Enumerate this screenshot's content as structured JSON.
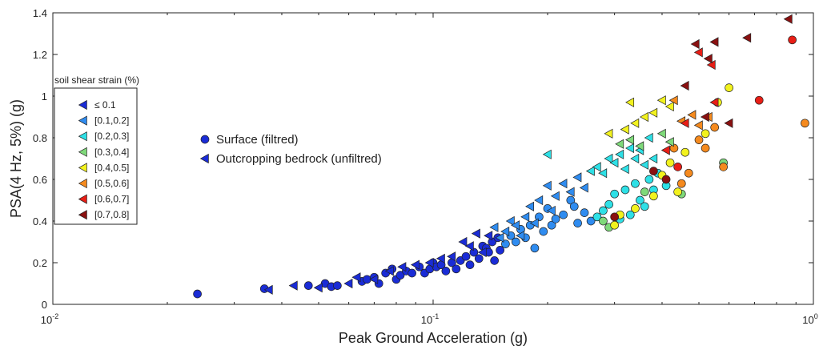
{
  "chart_data": {
    "type": "scatter",
    "xlabel": "Peak Ground Acceleration (g)",
    "ylabel": "PSA(4 Hz, 5%) (g)",
    "x_scale": "log",
    "xlim": [
      0.01,
      1
    ],
    "ylim": [
      0,
      1.4
    ],
    "x_ticks": [
      {
        "value": 0.01,
        "base": "10",
        "exp": "-2"
      },
      {
        "value": 0.1,
        "base": "10",
        "exp": "-1"
      },
      {
        "value": 1,
        "base": "10",
        "exp": "0"
      }
    ],
    "y_ticks": [
      {
        "value": 0,
        "label": "0"
      },
      {
        "value": 0.2,
        "label": "0.2"
      },
      {
        "value": 0.4,
        "label": "0.4"
      },
      {
        "value": 0.6,
        "label": "0.6"
      },
      {
        "value": 0.8,
        "label": "0.8"
      },
      {
        "value": 1.0,
        "label": "1"
      },
      {
        "value": 1.2,
        "label": "1.2"
      },
      {
        "value": 1.4,
        "label": "1.4"
      }
    ],
    "grid": false,
    "strain_legend": {
      "title": "soil shear strain (%)",
      "placement": "left",
      "classes": [
        {
          "label": "≤ 0.1",
          "color": "#1a2cd6"
        },
        {
          "label": "[0.1,0.2]",
          "color": "#2f8cf0"
        },
        {
          "label": "[0.2,0.3]",
          "color": "#2ee0e6"
        },
        {
          "label": "[0.3,0.4]",
          "color": "#7fd97a"
        },
        {
          "label": "[0.4,0.5]",
          "color": "#f2f21e"
        },
        {
          "label": "[0.5,0.6]",
          "color": "#f58a1e"
        },
        {
          "label": "[0.6,0.7]",
          "color": "#e81e16"
        },
        {
          "label": "[0.7,0.8]",
          "color": "#8a1010"
        }
      ]
    },
    "marker_legend": [
      {
        "label": "Surface (filtred)",
        "marker": "circle",
        "color": "#1a2cd6"
      },
      {
        "label": "Outcropping bedrock (unfiltred)",
        "marker": "triangle-left",
        "color": "#1a2cd6"
      }
    ],
    "series": [
      {
        "name": "Surface (filtred)",
        "marker": "circle",
        "points": [
          [
            0.024,
            0.05,
            0
          ],
          [
            0.036,
            0.075,
            0
          ],
          [
            0.047,
            0.09,
            0
          ],
          [
            0.052,
            0.1,
            0
          ],
          [
            0.054,
            0.085,
            0
          ],
          [
            0.056,
            0.09,
            0
          ],
          [
            0.065,
            0.11,
            0
          ],
          [
            0.067,
            0.12,
            0
          ],
          [
            0.07,
            0.13,
            0
          ],
          [
            0.072,
            0.1,
            0
          ],
          [
            0.075,
            0.15,
            0
          ],
          [
            0.078,
            0.17,
            0
          ],
          [
            0.08,
            0.12,
            0
          ],
          [
            0.082,
            0.14,
            0
          ],
          [
            0.085,
            0.16,
            0
          ],
          [
            0.088,
            0.15,
            0
          ],
          [
            0.092,
            0.18,
            0
          ],
          [
            0.095,
            0.15,
            0
          ],
          [
            0.098,
            0.17,
            0
          ],
          [
            0.1,
            0.2,
            0
          ],
          [
            0.102,
            0.18,
            0
          ],
          [
            0.105,
            0.19,
            0
          ],
          [
            0.108,
            0.16,
            0
          ],
          [
            0.112,
            0.2,
            0
          ],
          [
            0.115,
            0.17,
            0
          ],
          [
            0.118,
            0.21,
            0
          ],
          [
            0.122,
            0.23,
            0
          ],
          [
            0.125,
            0.19,
            0
          ],
          [
            0.128,
            0.25,
            0
          ],
          [
            0.132,
            0.22,
            0
          ],
          [
            0.135,
            0.28,
            0
          ],
          [
            0.138,
            0.27,
            0
          ],
          [
            0.14,
            0.25,
            0
          ],
          [
            0.143,
            0.3,
            0
          ],
          [
            0.145,
            0.21,
            0
          ],
          [
            0.148,
            0.32,
            0
          ],
          [
            0.15,
            0.26,
            0
          ],
          [
            0.155,
            0.29,
            1
          ],
          [
            0.16,
            0.33,
            1
          ],
          [
            0.165,
            0.3,
            1
          ],
          [
            0.17,
            0.36,
            1
          ],
          [
            0.175,
            0.32,
            1
          ],
          [
            0.18,
            0.38,
            1
          ],
          [
            0.185,
            0.27,
            1
          ],
          [
            0.19,
            0.42,
            1
          ],
          [
            0.195,
            0.35,
            1
          ],
          [
            0.2,
            0.46,
            1
          ],
          [
            0.205,
            0.38,
            1
          ],
          [
            0.21,
            0.41,
            1
          ],
          [
            0.22,
            0.43,
            1
          ],
          [
            0.23,
            0.5,
            1
          ],
          [
            0.235,
            0.47,
            1
          ],
          [
            0.24,
            0.39,
            1
          ],
          [
            0.25,
            0.44,
            1
          ],
          [
            0.26,
            0.4,
            1
          ],
          [
            0.27,
            0.42,
            2
          ],
          [
            0.28,
            0.45,
            2
          ],
          [
            0.29,
            0.48,
            2
          ],
          [
            0.3,
            0.53,
            2
          ],
          [
            0.31,
            0.41,
            2
          ],
          [
            0.32,
            0.55,
            2
          ],
          [
            0.33,
            0.43,
            2
          ],
          [
            0.34,
            0.58,
            2
          ],
          [
            0.35,
            0.5,
            2
          ],
          [
            0.36,
            0.47,
            2
          ],
          [
            0.37,
            0.6,
            2
          ],
          [
            0.38,
            0.55,
            2
          ],
          [
            0.39,
            0.63,
            2
          ],
          [
            0.41,
            0.57,
            2
          ],
          [
            0.28,
            0.4,
            3
          ],
          [
            0.29,
            0.37,
            3
          ],
          [
            0.36,
            0.54,
            3
          ],
          [
            0.45,
            0.53,
            3
          ],
          [
            0.58,
            0.68,
            3
          ],
          [
            0.3,
            0.38,
            4
          ],
          [
            0.31,
            0.43,
            4
          ],
          [
            0.34,
            0.46,
            4
          ],
          [
            0.38,
            0.52,
            4
          ],
          [
            0.4,
            0.62,
            4
          ],
          [
            0.42,
            0.68,
            4
          ],
          [
            0.44,
            0.54,
            4
          ],
          [
            0.46,
            0.73,
            4
          ],
          [
            0.52,
            0.82,
            4
          ],
          [
            0.56,
            0.97,
            4
          ],
          [
            0.6,
            1.04,
            4
          ],
          [
            0.43,
            0.75,
            5
          ],
          [
            0.45,
            0.58,
            5
          ],
          [
            0.47,
            0.63,
            5
          ],
          [
            0.5,
            0.79,
            5
          ],
          [
            0.52,
            0.75,
            5
          ],
          [
            0.55,
            0.85,
            5
          ],
          [
            0.58,
            0.66,
            5
          ],
          [
            0.95,
            0.87,
            5
          ],
          [
            0.44,
            0.66,
            6
          ],
          [
            0.72,
            0.98,
            6
          ],
          [
            0.88,
            1.27,
            6
          ],
          [
            0.38,
            0.64,
            7
          ],
          [
            0.41,
            0.6,
            7
          ],
          [
            0.3,
            0.42,
            7
          ]
        ]
      },
      {
        "name": "Outcropping bedrock (unfiltred)",
        "marker": "triangle-left",
        "points": [
          [
            0.037,
            0.07,
            0
          ],
          [
            0.043,
            0.09,
            0
          ],
          [
            0.05,
            0.08,
            0
          ],
          [
            0.06,
            0.1,
            0
          ],
          [
            0.063,
            0.13,
            0
          ],
          [
            0.07,
            0.12,
            0
          ],
          [
            0.077,
            0.16,
            0
          ],
          [
            0.083,
            0.18,
            0
          ],
          [
            0.09,
            0.19,
            0
          ],
          [
            0.098,
            0.2,
            0
          ],
          [
            0.105,
            0.22,
            0
          ],
          [
            0.112,
            0.23,
            0
          ],
          [
            0.12,
            0.3,
            0
          ],
          [
            0.125,
            0.28,
            0
          ],
          [
            0.13,
            0.34,
            0
          ],
          [
            0.135,
            0.25,
            0
          ],
          [
            0.14,
            0.33,
            0
          ],
          [
            0.145,
            0.37,
            1
          ],
          [
            0.15,
            0.32,
            1
          ],
          [
            0.155,
            0.35,
            1
          ],
          [
            0.16,
            0.4,
            1
          ],
          [
            0.165,
            0.38,
            1
          ],
          [
            0.17,
            0.33,
            1
          ],
          [
            0.175,
            0.42,
            1
          ],
          [
            0.18,
            0.47,
            1
          ],
          [
            0.185,
            0.39,
            1
          ],
          [
            0.19,
            0.5,
            1
          ],
          [
            0.2,
            0.57,
            1
          ],
          [
            0.205,
            0.45,
            1
          ],
          [
            0.21,
            0.52,
            1
          ],
          [
            0.22,
            0.58,
            1
          ],
          [
            0.23,
            0.54,
            1
          ],
          [
            0.24,
            0.61,
            1
          ],
          [
            0.25,
            0.56,
            1
          ],
          [
            0.26,
            0.64,
            2
          ],
          [
            0.27,
            0.66,
            2
          ],
          [
            0.28,
            0.63,
            2
          ],
          [
            0.29,
            0.7,
            2
          ],
          [
            0.3,
            0.68,
            2
          ],
          [
            0.31,
            0.72,
            2
          ],
          [
            0.32,
            0.65,
            2
          ],
          [
            0.33,
            0.75,
            2
          ],
          [
            0.34,
            0.7,
            2
          ],
          [
            0.35,
            0.74,
            2
          ],
          [
            0.36,
            0.67,
            2
          ],
          [
            0.37,
            0.8,
            2
          ],
          [
            0.38,
            0.7,
            2
          ],
          [
            0.2,
            0.72,
            2
          ],
          [
            0.31,
            0.77,
            3
          ],
          [
            0.33,
            0.79,
            3
          ],
          [
            0.35,
            0.76,
            3
          ],
          [
            0.4,
            0.82,
            3
          ],
          [
            0.42,
            0.78,
            3
          ],
          [
            0.29,
            0.82,
            4
          ],
          [
            0.32,
            0.84,
            4
          ],
          [
            0.34,
            0.87,
            4
          ],
          [
            0.36,
            0.9,
            4
          ],
          [
            0.38,
            0.92,
            4
          ],
          [
            0.33,
            0.97,
            4
          ],
          [
            0.4,
            0.98,
            4
          ],
          [
            0.42,
            0.95,
            4
          ],
          [
            0.45,
            0.88,
            5
          ],
          [
            0.48,
            0.91,
            5
          ],
          [
            0.5,
            0.86,
            5
          ],
          [
            0.53,
            0.9,
            5
          ],
          [
            0.43,
            0.98,
            5
          ],
          [
            0.41,
            0.74,
            6
          ],
          [
            0.46,
            0.87,
            6
          ],
          [
            0.5,
            1.21,
            6
          ],
          [
            0.54,
            1.15,
            6
          ],
          [
            0.55,
            0.97,
            6
          ],
          [
            0.52,
            0.9,
            7
          ],
          [
            0.49,
            1.25,
            7
          ],
          [
            0.53,
            1.18,
            7
          ],
          [
            0.6,
            0.87,
            7
          ],
          [
            0.67,
            1.28,
            7
          ],
          [
            0.86,
            1.37,
            7
          ],
          [
            0.46,
            1.05,
            7
          ],
          [
            0.55,
            1.26,
            7
          ]
        ]
      }
    ]
  }
}
